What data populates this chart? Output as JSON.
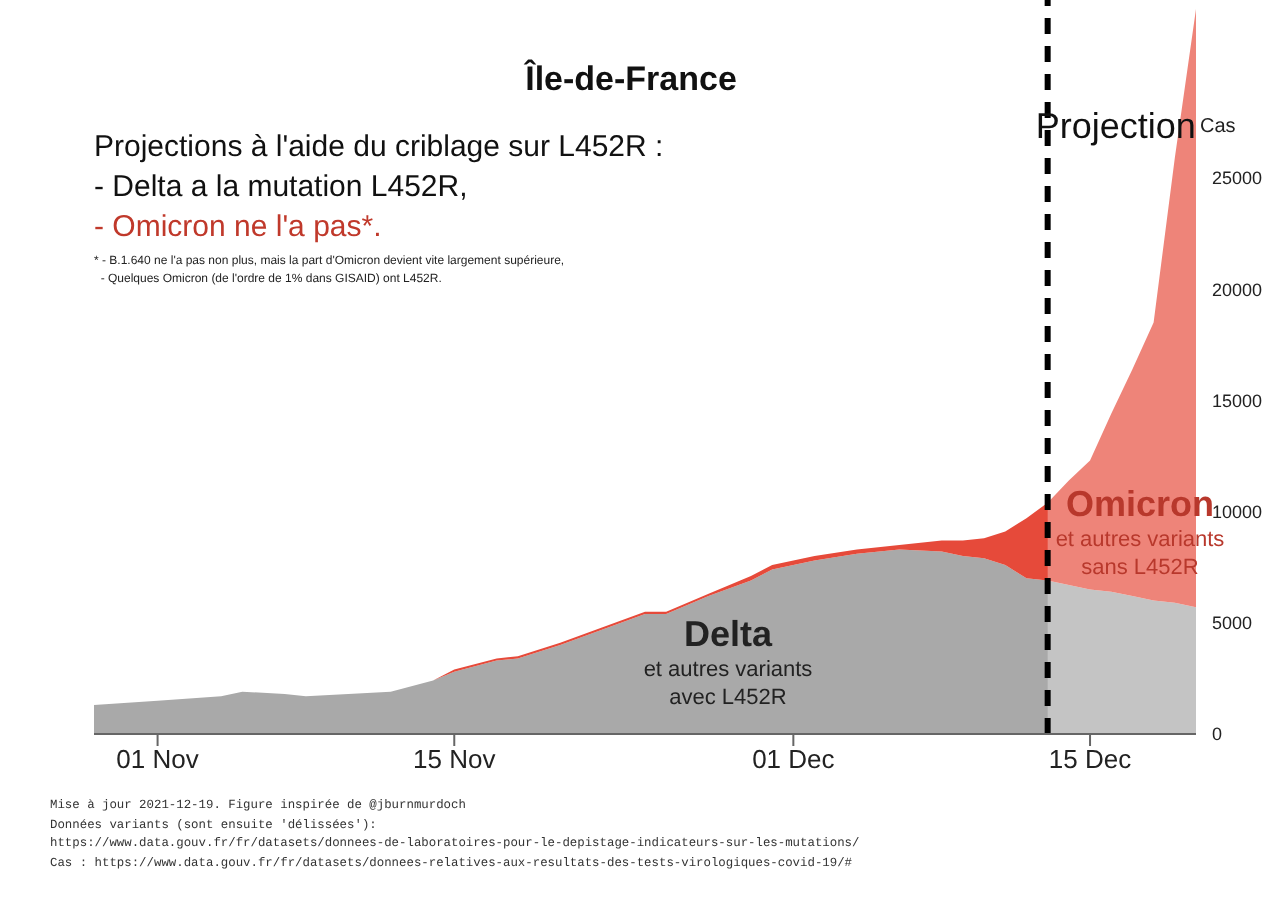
{
  "chart_data": {
    "type": "area",
    "stacked": true,
    "title": "Île-de-France",
    "subtitle": "Projections à l'aide du criblage sur L452R :",
    "ylabel": "Cas",
    "x": [
      "2021-10-29",
      "2021-11-01",
      "2021-11-04",
      "2021-11-05",
      "2021-11-07",
      "2021-11-08",
      "2021-11-10",
      "2021-11-12",
      "2021-11-14",
      "2021-11-15",
      "2021-11-17",
      "2021-11-18",
      "2021-11-20",
      "2021-11-22",
      "2021-11-24",
      "2021-11-25",
      "2021-11-27",
      "2021-11-29",
      "2021-11-30",
      "2021-12-01",
      "2021-12-02",
      "2021-12-04",
      "2021-12-06",
      "2021-12-08",
      "2021-12-09",
      "2021-12-10",
      "2021-12-11",
      "2021-12-12",
      "2021-12-13",
      "2021-12-14",
      "2021-12-15",
      "2021-12-16",
      "2021-12-17",
      "2021-12-18",
      "2021-12-19",
      "2021-12-20"
    ],
    "series": [
      {
        "name": "Delta",
        "color": "#a9a9a9",
        "values": [
          1300,
          1500,
          1700,
          1900,
          1800,
          1700,
          1800,
          1900,
          2400,
          2800,
          3300,
          3400,
          4000,
          4700,
          5400,
          5400,
          6200,
          6900,
          7400,
          7600,
          7800,
          8100,
          8300,
          8200,
          8000,
          7900,
          7600,
          7000,
          6900,
          6700,
          6500,
          6400,
          6200,
          6000,
          5900,
          5700
        ]
      },
      {
        "name": "Omicron",
        "color": "#e64a3a",
        "values": [
          0,
          0,
          0,
          0,
          0,
          0,
          0,
          0,
          0,
          100,
          100,
          100,
          100,
          100,
          100,
          100,
          100,
          200,
          200,
          200,
          200,
          200,
          200,
          500,
          700,
          900,
          1500,
          2700,
          3500,
          4700,
          5800,
          8000,
          10200,
          12500,
          20000,
          26900
        ]
      }
    ],
    "xlim": [
      "2021-10-29",
      "2021-12-20"
    ],
    "xticks": [
      {
        "value": "2021-11-01",
        "label": "01 Nov"
      },
      {
        "value": "2021-11-15",
        "label": "15 Nov"
      },
      {
        "value": "2021-12-01",
        "label": "01 Dec"
      },
      {
        "value": "2021-12-15",
        "label": "15 Dec"
      }
    ],
    "ylim": [
      0,
      33000
    ],
    "yticks": [
      0,
      5000,
      10000,
      15000,
      20000,
      25000
    ],
    "ref_lines": [
      {
        "axis": "x",
        "value": "2021-12-13",
        "label": "Projection",
        "color": "#000000",
        "line_style": "dashed"
      }
    ],
    "bands": [
      {
        "axis": "x",
        "from": "2021-12-13",
        "to": "2021-12-20",
        "color": "#ffffff"
      }
    ],
    "annotations": [
      "- Delta a la mutation L452R,",
      "- Omicron ne l'a pas*.",
      "* - B.1.640 ne l'a pas non plus, mais la part d'Omicron devient vite largement supérieure,",
      "  - Quelques Omicron (de l'ordre de 1% dans GISAID) ont L452R.",
      "et autres variants avec L452R",
      "et autres variants sans L452R",
      "Mise à jour 2021-12-19. Figure inspirée de @jburnmurdoch",
      "Données variants (sont ensuite 'délissées'):",
      "https://www.data.gouv.fr/fr/datasets/donnees-de-laboratoires-pour-le-depistage-indicateurs-sur-les-mutations/",
      "Cas : https://www.data.gouv.fr/fr/datasets/donnees-relatives-aux-resultats-des-tests-virologiques-covid-19/#"
    ],
    "grid": false,
    "legend": false
  }
}
